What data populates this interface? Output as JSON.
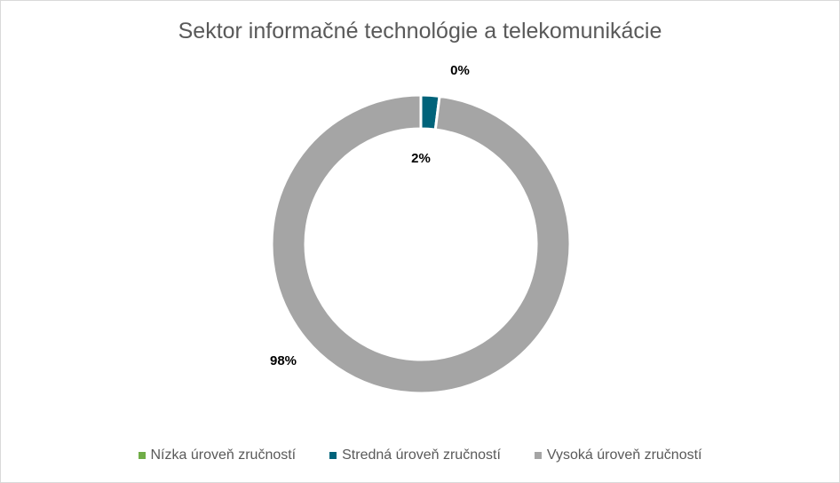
{
  "chart_data": {
    "type": "pie",
    "variant": "doughnut",
    "title": "Sektor informačné technológie a telekomunikácie",
    "categories": [
      "Nízka úroveň zručností",
      "Stredná úroveň zručností",
      "Vysoká úroveň zručností"
    ],
    "values": [
      0,
      2,
      98
    ],
    "labels": [
      "0%",
      "2%",
      "98%"
    ],
    "colors": [
      "#70ad47",
      "#00637a",
      "#a5a5a5"
    ],
    "legend": "bottom"
  }
}
